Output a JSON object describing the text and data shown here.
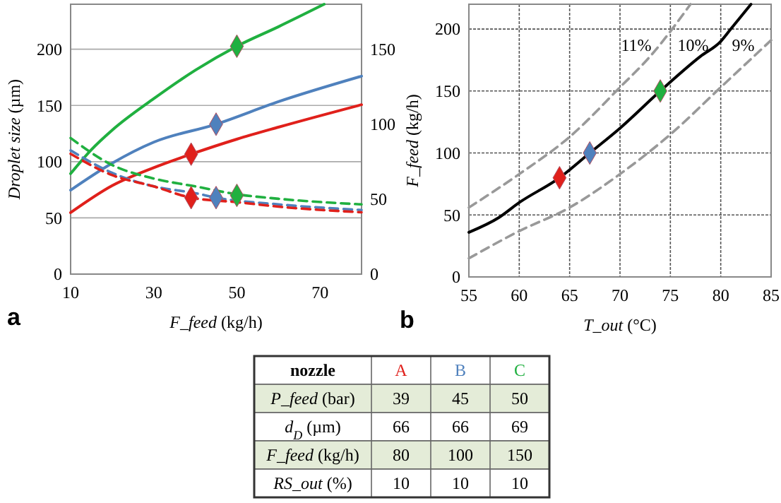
{
  "chart_data": [
    {
      "type": "line",
      "annotations": [
        "a"
      ],
      "xlabel": "F_feed (kg/h)",
      "ylabel": "Droplet size (µm)",
      "xlim": [
        10,
        80
      ],
      "xticks": [
        10,
        30,
        50,
        70
      ],
      "ylim": [
        0,
        240
      ],
      "yticks": [
        0,
        50,
        100,
        150,
        200
      ],
      "y2lim": [
        0,
        180
      ],
      "y2ticks": [
        0,
        50,
        100,
        150
      ],
      "grid": "y",
      "series": [
        {
          "color": "#20b040",
          "axis": "y2",
          "line_style": "solid",
          "marker": "none",
          "x": [
            10,
            15,
            20,
            30,
            40,
            50,
            60,
            71
          ],
          "values": [
            67,
            83,
            96,
            117,
            136,
            152,
            165,
            180
          ]
        },
        {
          "color": "#4f81bd",
          "axis": "y2",
          "line_style": "solid",
          "marker": "none",
          "x": [
            10,
            20,
            30,
            45,
            60,
            80
          ],
          "values": [
            56,
            74,
            88,
            100,
            115,
            132
          ]
        },
        {
          "color": "#e0201b",
          "axis": "y2",
          "line_style": "solid",
          "marker": "none",
          "x": [
            10,
            20,
            30,
            39,
            50,
            60,
            80
          ],
          "values": [
            41,
            59,
            71,
            80,
            90,
            98,
            113
          ]
        },
        {
          "color": "#20b040",
          "axis": "y",
          "line_style": "dashed",
          "marker": "none",
          "x": [
            10,
            20,
            30,
            40,
            50,
            60,
            80
          ],
          "values": [
            121,
            97,
            85,
            78,
            71,
            67,
            62
          ]
        },
        {
          "color": "#4f81bd",
          "axis": "y",
          "line_style": "dashed",
          "marker": "none",
          "x": [
            10,
            20,
            30,
            40,
            45,
            60,
            80
          ],
          "values": [
            110,
            90,
            78,
            72,
            68,
            62,
            57
          ]
        },
        {
          "color": "#e0201b",
          "axis": "y",
          "line_style": "dashed",
          "marker": "none",
          "x": [
            10,
            20,
            30,
            39,
            50,
            60,
            80
          ],
          "values": [
            107,
            88,
            78,
            68,
            64,
            60,
            55
          ]
        },
        {
          "type": "scatter",
          "axis": "y",
          "marker": "diamond",
          "x": [
            39,
            45,
            50
          ],
          "values": [
            68,
            68,
            70
          ],
          "colors": [
            "#e0201b",
            "#4f81bd",
            "#20b040"
          ]
        },
        {
          "type": "scatter",
          "axis": "y2",
          "marker": "diamond",
          "x": [
            39,
            45,
            50
          ],
          "values": [
            80,
            100,
            152
          ],
          "colors": [
            "#e0201b",
            "#4f81bd",
            "#20b040"
          ]
        }
      ]
    },
    {
      "type": "line",
      "annotations": [
        "b"
      ],
      "xlabel": "T_out (°C)",
      "ylabel": "F_feed (kg/h)",
      "xlim": [
        55,
        85
      ],
      "xticks": [
        55,
        60,
        65,
        70,
        75,
        80,
        85
      ],
      "ylim": [
        0,
        220
      ],
      "yticks": [
        0,
        50,
        100,
        150,
        200
      ],
      "grid": true,
      "series": [
        {
          "name": "10%",
          "color": "#000000",
          "line_style": "solid",
          "marker": "none",
          "x": [
            55,
            58,
            60,
            64,
            67,
            70,
            74,
            78,
            80,
            81,
            83
          ],
          "values": [
            36,
            48,
            60,
            80,
            100,
            120,
            150,
            178,
            190,
            200,
            220
          ]
        },
        {
          "name": "11%",
          "color": "#999999",
          "line_style": "dashed",
          "marker": "none",
          "x": [
            55,
            60,
            65,
            70,
            73,
            77
          ],
          "values": [
            56,
            83,
            113,
            153,
            178,
            220
          ]
        },
        {
          "name": "9%",
          "color": "#999999",
          "line_style": "dashed",
          "marker": "none",
          "x": [
            55,
            60,
            65,
            70,
            75,
            80,
            85
          ],
          "values": [
            15,
            37,
            56,
            83,
            115,
            153,
            191
          ]
        },
        {
          "type": "scatter",
          "marker": "diamond",
          "x": [
            64,
            67,
            74
          ],
          "values": [
            80,
            100,
            150
          ],
          "colors": [
            "#e0201b",
            "#4f81bd",
            "#20b040"
          ]
        }
      ]
    },
    {
      "type": "heatmap",
      "data_labels": true,
      "xlabel": "nozzle",
      "categories": [
        "A",
        "B",
        "C"
      ],
      "colors": [
        "#e0201b",
        "#4f81bd",
        "#20b040"
      ],
      "y_categories": [
        "P_feed (bar)",
        "d$_{D}$ (µm)",
        "F_feed (kg/h)",
        "RS_out (%)"
      ],
      "cells": [
        [
          39,
          45,
          50
        ],
        [
          66,
          66,
          69
        ],
        [
          80,
          100,
          150
        ],
        [
          10,
          10,
          10
        ]
      ]
    }
  ]
}
